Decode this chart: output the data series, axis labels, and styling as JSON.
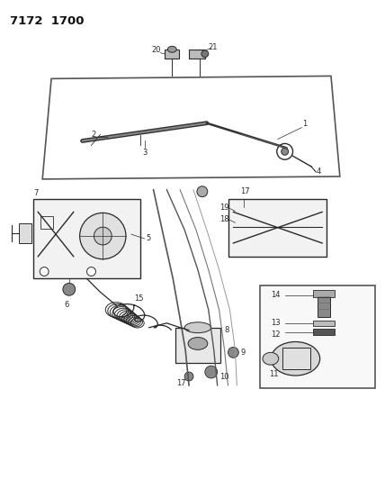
{
  "title": "7172  1700",
  "bg_color": "#ffffff",
  "lc": "#2a2a2a",
  "fig_width": 4.28,
  "fig_height": 5.33,
  "dpi": 100,
  "label_fs": 6.0,
  "title_fs": 9.5
}
